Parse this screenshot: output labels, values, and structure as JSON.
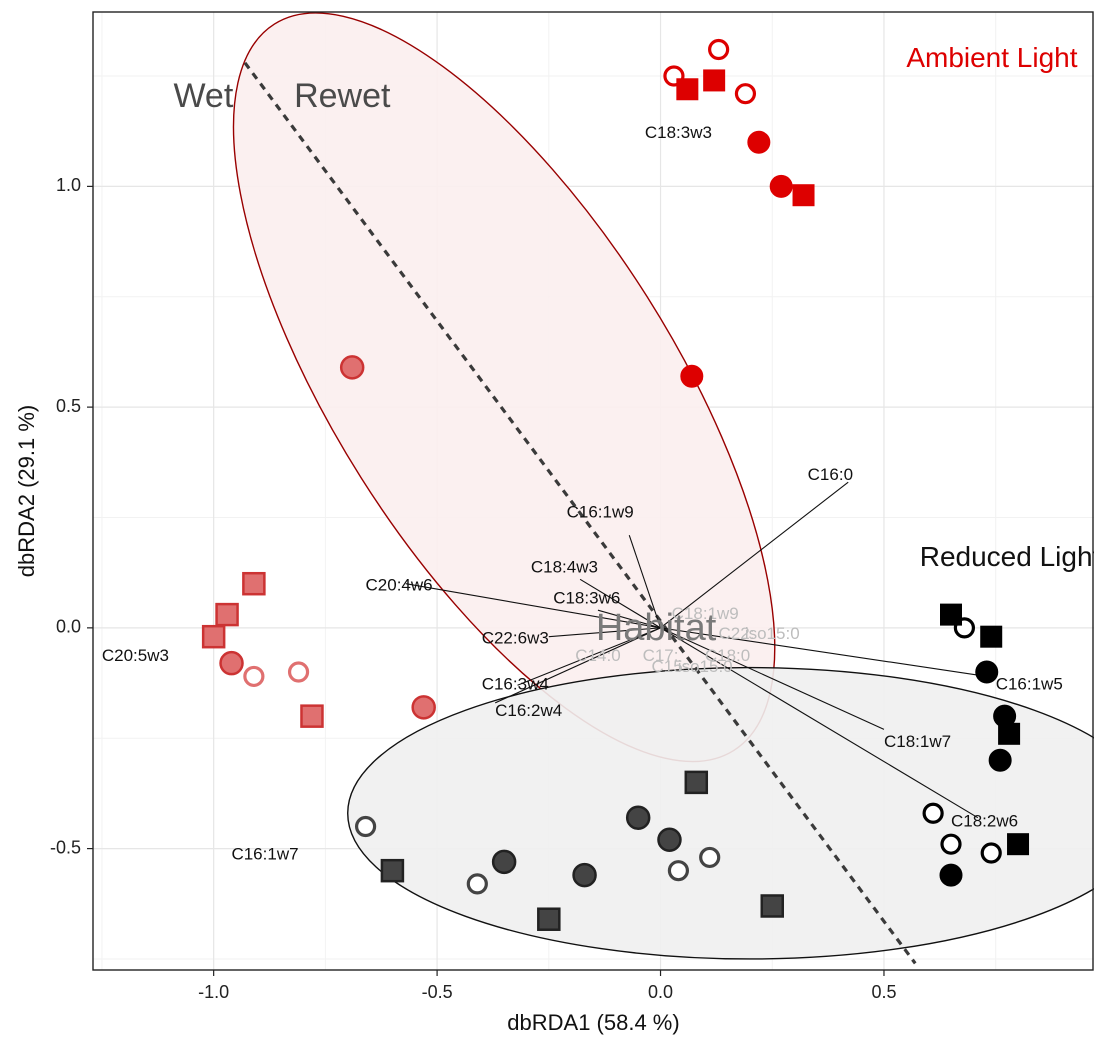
{
  "chart_data": {
    "type": "scatter",
    "xlabel": "dbRDA1 (58.4 %)",
    "ylabel": "dbRDA2 (29.1 %)",
    "xlim": [
      -1.27,
      0.97
    ],
    "ylim": [
      -0.775,
      1.395
    ],
    "x_ticks": [
      {
        "value": -1.0,
        "label": "-1.0"
      },
      {
        "value": -0.5,
        "label": "-0.5"
      },
      {
        "value": 0.0,
        "label": "0.0"
      },
      {
        "value": 0.5,
        "label": "0.5"
      }
    ],
    "y_ticks": [
      {
        "value": -0.5,
        "label": "-0.5"
      },
      {
        "value": 0.0,
        "label": "0.0"
      },
      {
        "value": 0.5,
        "label": "0.5"
      },
      {
        "value": 1.0,
        "label": "1.0"
      }
    ],
    "grid": true,
    "colors": {
      "ambient": "#dd0000",
      "ambient_wet": "#e07070",
      "ambient_ellipse_fill": "#fbeeee",
      "ambient_ellipse_stroke": "#990000",
      "reduced": "#000000",
      "reduced_wet": "#444444",
      "reduced_ellipse_fill": "#f0f0f0",
      "reduced_ellipse_stroke": "#111111"
    },
    "group_labels": [
      {
        "text": "Ambient Light",
        "x": 0.55,
        "y": 1.27,
        "color": "#dd0000"
      },
      {
        "text": "Reduced Light",
        "x": 0.58,
        "y": 0.14,
        "color": "#111111"
      }
    ],
    "divider": {
      "style": "dashed",
      "from": [
        -0.93,
        1.28
      ],
      "to": [
        0.57,
        -0.76
      ],
      "label_left": "Wet",
      "label_left_pos": [
        -1.09,
        1.18
      ],
      "label_right": "Rewet",
      "label_right_pos": [
        -0.82,
        1.18
      ]
    },
    "ellipses": [
      {
        "name": "Ambient Light",
        "cx": -0.35,
        "cy": 0.545,
        "rx": 0.97,
        "ry": 0.38,
        "rotation_deg": -58,
        "fill": "#fbeeee",
        "stroke": "#990000"
      },
      {
        "name": "Reduced Light",
        "cx": 0.2,
        "cy": -0.42,
        "rx": 0.9,
        "ry": 0.33,
        "rotation_deg": 0,
        "fill": "#f0f0f0",
        "stroke": "#111111"
      }
    ],
    "vectors_origin": [
      0.0,
      0.0
    ],
    "vectors": [
      {
        "label": "C16:0",
        "x": 0.42,
        "y": 0.33
      },
      {
        "label": "C16:1w9",
        "x": -0.07,
        "y": 0.21
      },
      {
        "label": "C18:4w3",
        "x": -0.18,
        "y": 0.11
      },
      {
        "label": "C20:4w6",
        "x": -0.57,
        "y": 0.1
      },
      {
        "label": "C18:3w6",
        "x": -0.14,
        "y": 0.04
      },
      {
        "label": "C22:6w3",
        "x": -0.25,
        "y": -0.02
      },
      {
        "label": "C16:3w4",
        "x": -0.32,
        "y": -0.13
      },
      {
        "label": "C16:2w4",
        "x": -0.37,
        "y": -0.17
      },
      {
        "label": "C16:1w5",
        "x": 0.73,
        "y": -0.11
      },
      {
        "label": "C18:1w7",
        "x": 0.5,
        "y": -0.23
      },
      {
        "label": "C18:2w6",
        "x": 0.71,
        "y": -0.43
      }
    ],
    "vector_labels": [
      {
        "text": "C16:0",
        "x": 0.38,
        "y": 0.345,
        "anchor": "middle"
      },
      {
        "text": "C16:1w9",
        "x": -0.06,
        "y": 0.26,
        "anchor": "end"
      },
      {
        "text": "C18:4w3",
        "x": -0.14,
        "y": 0.135,
        "anchor": "end"
      },
      {
        "text": "C20:4w6",
        "x": -0.51,
        "y": 0.095,
        "anchor": "end"
      },
      {
        "text": "C18:3w6",
        "x": -0.09,
        "y": 0.065,
        "anchor": "end"
      },
      {
        "text": "C22:6w3",
        "x": -0.25,
        "y": -0.025,
        "anchor": "end"
      },
      {
        "text": "C16:3w4",
        "x": -0.25,
        "y": -0.13,
        "anchor": "end"
      },
      {
        "text": "C16:2w4",
        "x": -0.22,
        "y": -0.19,
        "anchor": "end"
      },
      {
        "text": "C16:1w5",
        "x": 0.75,
        "y": -0.13,
        "anchor": "start"
      },
      {
        "text": "C18:1w7",
        "x": 0.5,
        "y": -0.26,
        "anchor": "start"
      },
      {
        "text": "C18:2w6",
        "x": 0.65,
        "y": -0.44,
        "anchor": "start"
      },
      {
        "text": "C18:3w3",
        "x": 0.04,
        "y": 1.12,
        "anchor": "middle"
      },
      {
        "text": "C20:5w3",
        "x": -1.1,
        "y": -0.065,
        "anchor": "end"
      },
      {
        "text": "C16:1w7",
        "x": -0.81,
        "y": -0.515,
        "anchor": "end"
      }
    ],
    "faint_labels": [
      {
        "text": "C18:1w9",
        "x": 0.1,
        "y": 0.03
      },
      {
        "text": "C22:",
        "x": 0.17,
        "y": -0.015
      },
      {
        "text": "iso15:0",
        "x": 0.25,
        "y": -0.015
      },
      {
        "text": "C14:0",
        "x": -0.14,
        "y": -0.065
      },
      {
        "text": "C17:",
        "x": 0.0,
        "y": -0.065
      },
      {
        "text": "C18:0",
        "x": 0.15,
        "y": -0.065
      },
      {
        "text": "C15:",
        "x": 0.02,
        "y": -0.09
      },
      {
        "text": "iso15:0",
        "x": 0.1,
        "y": -0.09
      }
    ],
    "centroid_label": {
      "text": "Habitat",
      "x": -0.01,
      "y": -0.005
    },
    "series": [
      {
        "group": "Ambient Light",
        "condition": "Rewet",
        "shape": "circle",
        "fill": "filled",
        "color": "#dd0000",
        "x": [
          0.22,
          0.27,
          0.07
        ],
        "y": [
          1.1,
          1.0,
          0.57
        ]
      },
      {
        "group": "Ambient Light",
        "condition": "Rewet",
        "shape": "circle",
        "fill": "open",
        "color": "#dd0000",
        "x": [
          0.03,
          0.13,
          0.19
        ],
        "y": [
          1.25,
          1.31,
          1.21
        ]
      },
      {
        "group": "Ambient Light",
        "condition": "Rewet",
        "shape": "square",
        "fill": "filled",
        "color": "#dd0000",
        "x": [
          0.06,
          0.12,
          0.32
        ],
        "y": [
          1.22,
          1.24,
          0.98
        ]
      },
      {
        "group": "Ambient Light",
        "condition": "Wet",
        "shape": "circle",
        "fill": "filled",
        "color": "#e07070",
        "x": [
          -0.69,
          -0.96,
          -0.53
        ],
        "y": [
          0.59,
          -0.08,
          -0.18
        ]
      },
      {
        "group": "Ambient Light",
        "condition": "Wet",
        "shape": "circle",
        "fill": "open",
        "color": "#e07070",
        "x": [
          -0.91,
          -0.81
        ],
        "y": [
          -0.11,
          -0.1
        ]
      },
      {
        "group": "Ambient Light",
        "condition": "Wet",
        "shape": "square",
        "fill": "filled",
        "color": "#e07070",
        "x": [
          -0.91,
          -0.97,
          -1.0,
          -0.78
        ],
        "y": [
          0.1,
          0.03,
          -0.02,
          -0.2
        ]
      },
      {
        "group": "Reduced Light",
        "condition": "Rewet",
        "shape": "circle",
        "fill": "filled",
        "color": "#000000",
        "x": [
          0.73,
          0.77,
          0.76,
          0.65
        ],
        "y": [
          -0.1,
          -0.2,
          -0.3,
          -0.56
        ]
      },
      {
        "group": "Reduced Light",
        "condition": "Rewet",
        "shape": "circle",
        "fill": "open",
        "color": "#000000",
        "x": [
          0.68,
          0.61,
          0.65,
          0.74
        ],
        "y": [
          -0.0,
          -0.42,
          -0.49,
          -0.51
        ]
      },
      {
        "group": "Reduced Light",
        "condition": "Rewet",
        "shape": "square",
        "fill": "filled",
        "color": "#000000",
        "x": [
          0.65,
          0.74,
          0.78,
          0.8
        ],
        "y": [
          0.03,
          -0.02,
          -0.24,
          -0.49
        ]
      },
      {
        "group": "Reduced Light",
        "condition": "Wet",
        "shape": "circle",
        "fill": "filled",
        "color": "#444444",
        "x": [
          -0.05,
          0.02,
          -0.35,
          -0.17
        ],
        "y": [
          -0.43,
          -0.48,
          -0.53,
          -0.56
        ]
      },
      {
        "group": "Reduced Light",
        "condition": "Wet",
        "shape": "circle",
        "fill": "open",
        "color": "#444444",
        "x": [
          -0.66,
          0.04,
          0.11,
          -0.41
        ],
        "y": [
          -0.45,
          -0.55,
          -0.52,
          -0.58
        ]
      },
      {
        "group": "Reduced Light",
        "condition": "Wet",
        "shape": "square",
        "fill": "filled",
        "color": "#444444",
        "x": [
          0.08,
          -0.6,
          -0.25,
          0.25
        ],
        "y": [
          -0.35,
          -0.55,
          -0.66,
          -0.63
        ]
      }
    ]
  }
}
